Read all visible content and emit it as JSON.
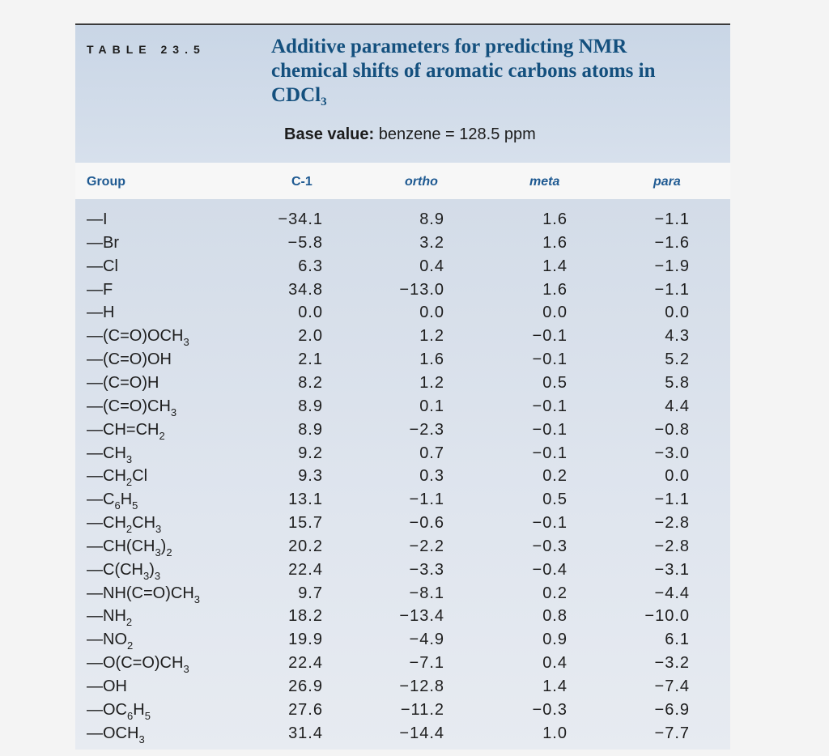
{
  "header": {
    "table_label": "TABLE 23.5",
    "caption_line1": "Additive parameters for predicting NMR",
    "caption_line2": "chemical shifts of aromatic carbons atoms in",
    "caption_line3_main": "CDCl",
    "caption_line3_sub": "3",
    "base_label": "Base value:",
    "base_value": "benzene = 128.5 ppm"
  },
  "columns": [
    "Group",
    "C-1",
    "ortho",
    "meta",
    "para"
  ],
  "rows": [
    {
      "group": [
        [
          "—I",
          ""
        ]
      ],
      "c1": "−34.1",
      "ortho": "8.9",
      "meta": "1.6",
      "para": "−1.1"
    },
    {
      "group": [
        [
          "—Br",
          ""
        ]
      ],
      "c1": "−5.8",
      "ortho": "3.2",
      "meta": "1.6",
      "para": "−1.6"
    },
    {
      "group": [
        [
          "—Cl",
          ""
        ]
      ],
      "c1": "6.3",
      "ortho": "0.4",
      "meta": "1.4",
      "para": "−1.9"
    },
    {
      "group": [
        [
          "—F",
          ""
        ]
      ],
      "c1": "34.8",
      "ortho": "−13.0",
      "meta": "1.6",
      "para": "−1.1"
    },
    {
      "group": [
        [
          "—H",
          ""
        ]
      ],
      "c1": "0.0",
      "ortho": "0.0",
      "meta": "0.0",
      "para": "0.0"
    },
    {
      "group": [
        [
          "—(C=O)OCH",
          "3"
        ]
      ],
      "c1": "2.0",
      "ortho": "1.2",
      "meta": "−0.1",
      "para": "4.3"
    },
    {
      "group": [
        [
          "—(C=O)OH",
          ""
        ]
      ],
      "c1": "2.1",
      "ortho": "1.6",
      "meta": "−0.1",
      "para": "5.2"
    },
    {
      "group": [
        [
          "—(C=O)H",
          ""
        ]
      ],
      "c1": "8.2",
      "ortho": "1.2",
      "meta": "0.5",
      "para": "5.8"
    },
    {
      "group": [
        [
          "—(C=O)CH",
          "3"
        ]
      ],
      "c1": "8.9",
      "ortho": "0.1",
      "meta": "−0.1",
      "para": "4.4"
    },
    {
      "group": [
        [
          "—CH=CH",
          "2"
        ]
      ],
      "c1": "8.9",
      "ortho": "−2.3",
      "meta": "−0.1",
      "para": "−0.8"
    },
    {
      "group": [
        [
          "—CH",
          "3"
        ]
      ],
      "c1": "9.2",
      "ortho": "0.7",
      "meta": "−0.1",
      "para": "−3.0"
    },
    {
      "group": [
        [
          "—CH",
          "2"
        ],
        [
          "Cl",
          ""
        ]
      ],
      "c1": "9.3",
      "ortho": "0.3",
      "meta": "0.2",
      "para": "0.0"
    },
    {
      "group": [
        [
          "—C",
          "6"
        ],
        [
          "H",
          "5"
        ]
      ],
      "c1": "13.1",
      "ortho": "−1.1",
      "meta": "0.5",
      "para": "−1.1"
    },
    {
      "group": [
        [
          "—CH",
          "2"
        ],
        [
          "CH",
          "3"
        ]
      ],
      "c1": "15.7",
      "ortho": "−0.6",
      "meta": "−0.1",
      "para": "−2.8"
    },
    {
      "group": [
        [
          "—CH(CH",
          "3"
        ],
        [
          ")",
          "2"
        ]
      ],
      "c1": "20.2",
      "ortho": "−2.2",
      "meta": "−0.3",
      "para": "−2.8"
    },
    {
      "group": [
        [
          "—C(CH",
          "3"
        ],
        [
          ")",
          "3"
        ]
      ],
      "c1": "22.4",
      "ortho": "−3.3",
      "meta": "−0.4",
      "para": "−3.1"
    },
    {
      "group": [
        [
          "—NH(C=O)CH",
          "3"
        ]
      ],
      "c1": "9.7",
      "ortho": "−8.1",
      "meta": "0.2",
      "para": "−4.4"
    },
    {
      "group": [
        [
          "—NH",
          "2"
        ]
      ],
      "c1": "18.2",
      "ortho": "−13.4",
      "meta": "0.8",
      "para": "−10.0"
    },
    {
      "group": [
        [
          "—NO",
          "2"
        ]
      ],
      "c1": "19.9",
      "ortho": "−4.9",
      "meta": "0.9",
      "para": "6.1"
    },
    {
      "group": [
        [
          "—O(C=O)CH",
          "3"
        ]
      ],
      "c1": "22.4",
      "ortho": "−7.1",
      "meta": "0.4",
      "para": "−3.2"
    },
    {
      "group": [
        [
          "—OH",
          ""
        ]
      ],
      "c1": "26.9",
      "ortho": "−12.8",
      "meta": "1.4",
      "para": "−7.4"
    },
    {
      "group": [
        [
          "—OC",
          "6"
        ],
        [
          "H",
          "5"
        ]
      ],
      "c1": "27.6",
      "ortho": "−11.2",
      "meta": "−0.3",
      "para": "−6.9"
    },
    {
      "group": [
        [
          "—OCH",
          "3"
        ]
      ],
      "c1": "31.4",
      "ortho": "−14.4",
      "meta": "1.0",
      "para": "−7.7"
    }
  ]
}
